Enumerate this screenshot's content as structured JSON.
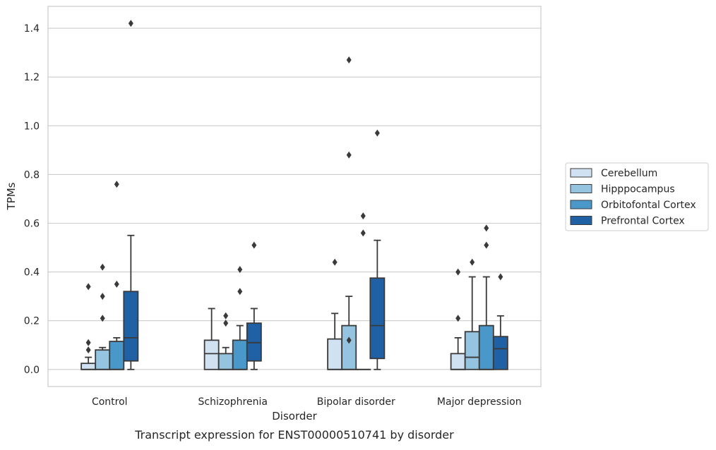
{
  "chart_data": {
    "type": "box",
    "xlabel": "Disorder",
    "ylabel": "TPMs",
    "caption": "Transcript expression for ENST00000510741 by disorder",
    "ylim": [
      -0.07,
      1.49
    ],
    "yticks": [
      0.0,
      0.2,
      0.4,
      0.6,
      0.8,
      1.0,
      1.2,
      1.4
    ],
    "ytick_labels": [
      "0.0",
      "0.2",
      "0.4",
      "0.6",
      "0.8",
      "1.0",
      "1.2",
      "1.4"
    ],
    "grid": "horizontal",
    "legend_placement": "right",
    "categories": [
      "Control",
      "Schizophrenia",
      "Bipolar disorder",
      "Major depression"
    ],
    "series": [
      {
        "name": "Cerebellum",
        "color": "#d0e1f2",
        "boxes": [
          {
            "whisker_low": 0.0,
            "q1": 0.0,
            "median": 0.0,
            "q3": 0.025,
            "whisker_high": 0.05,
            "outliers": [
              0.34,
              0.11,
              0.08
            ]
          },
          {
            "whisker_low": 0.0,
            "q1": 0.0,
            "median": 0.065,
            "q3": 0.12,
            "whisker_high": 0.25,
            "outliers": []
          },
          {
            "whisker_low": 0.0,
            "q1": 0.0,
            "median": 0.0,
            "q3": 0.125,
            "whisker_high": 0.23,
            "outliers": [
              0.44
            ]
          },
          {
            "whisker_low": 0.0,
            "q1": 0.0,
            "median": 0.0,
            "q3": 0.065,
            "whisker_high": 0.13,
            "outliers": [
              0.4,
              0.21
            ]
          }
        ]
      },
      {
        "name": "Hipppocampus",
        "color": "#94c4df",
        "boxes": [
          {
            "whisker_low": 0.0,
            "q1": 0.0,
            "median": 0.0,
            "q3": 0.08,
            "whisker_high": 0.09,
            "outliers": [
              0.42,
              0.3,
              0.21
            ]
          },
          {
            "whisker_low": 0.0,
            "q1": 0.0,
            "median": 0.0,
            "q3": 0.065,
            "whisker_high": 0.09,
            "outliers": [
              0.22,
              0.19
            ]
          },
          {
            "whisker_low": 0.0,
            "q1": 0.0,
            "median": 0.0,
            "q3": 0.18,
            "whisker_high": 0.3,
            "outliers": [
              1.27,
              0.88,
              0.12
            ]
          },
          {
            "whisker_low": 0.0,
            "q1": 0.0,
            "median": 0.05,
            "q3": 0.155,
            "whisker_high": 0.38,
            "outliers": [
              0.44
            ]
          }
        ]
      },
      {
        "name": "Orbitofontal Cortex",
        "color": "#4a98c9",
        "boxes": [
          {
            "whisker_low": 0.0,
            "q1": 0.0,
            "median": 0.0,
            "q3": 0.115,
            "whisker_high": 0.13,
            "outliers": [
              0.76,
              0.35
            ]
          },
          {
            "whisker_low": 0.0,
            "q1": 0.0,
            "median": 0.0,
            "q3": 0.12,
            "whisker_high": 0.18,
            "outliers": [
              0.41,
              0.32
            ]
          },
          {
            "whisker_low": 0.0,
            "q1": 0.0,
            "median": 0.0,
            "q3": 0.0,
            "whisker_high": 0.0,
            "outliers": [
              0.63,
              0.56
            ]
          },
          {
            "whisker_low": 0.0,
            "q1": 0.0,
            "median": 0.0,
            "q3": 0.18,
            "whisker_high": 0.38,
            "outliers": [
              0.58,
              0.51
            ]
          }
        ]
      },
      {
        "name": "Prefrontal Cortex",
        "color": "#2060a4",
        "boxes": [
          {
            "whisker_low": 0.0,
            "q1": 0.035,
            "median": 0.13,
            "q3": 0.32,
            "whisker_high": 0.55,
            "outliers": [
              1.42
            ]
          },
          {
            "whisker_low": 0.0,
            "q1": 0.035,
            "median": 0.11,
            "q3": 0.19,
            "whisker_high": 0.25,
            "outliers": [
              0.51
            ]
          },
          {
            "whisker_low": 0.0,
            "q1": 0.045,
            "median": 0.18,
            "q3": 0.375,
            "whisker_high": 0.53,
            "outliers": [
              0.97
            ]
          },
          {
            "whisker_low": 0.0,
            "q1": 0.0,
            "median": 0.085,
            "q3": 0.135,
            "whisker_high": 0.22,
            "outliers": [
              0.38
            ]
          }
        ]
      }
    ]
  }
}
